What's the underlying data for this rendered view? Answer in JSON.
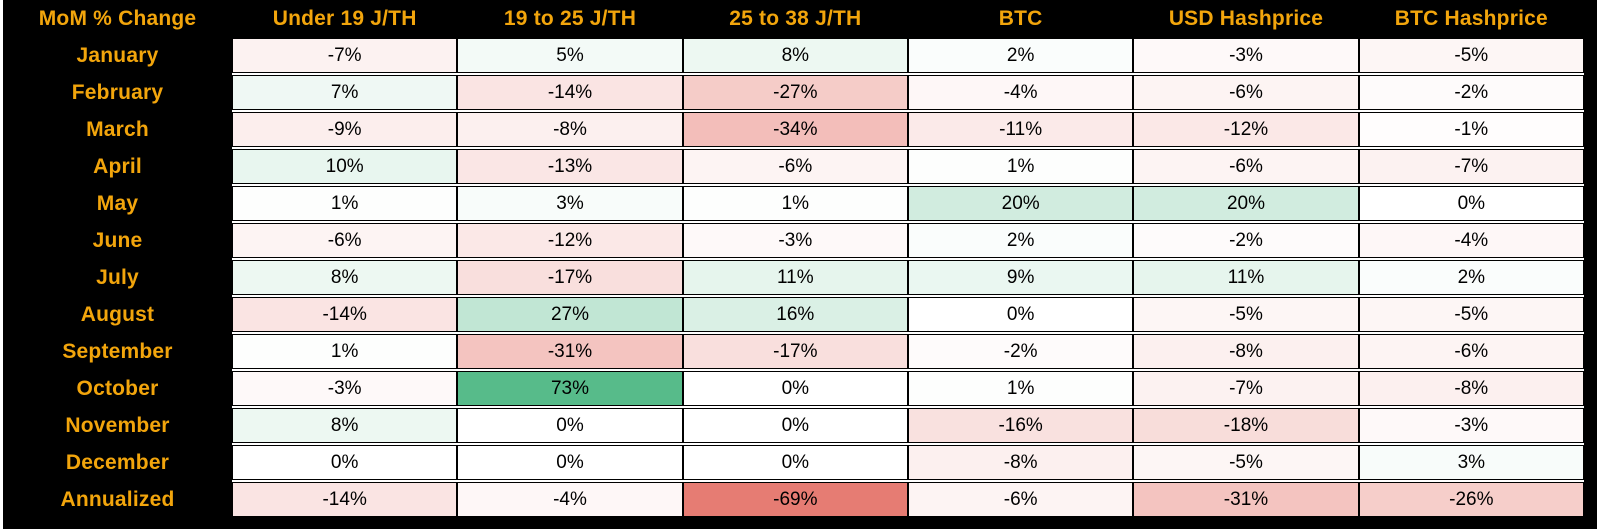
{
  "styles": {
    "page_bg": "#ffffff",
    "table_bg": "#000000",
    "header_text_color": "#F2A50C",
    "cell_text_color": "#000000",
    "cell_border_color": "#000000",
    "row_gap_color": "#ffffff"
  },
  "chart_data": {
    "type": "heatmap",
    "title": "MoM % Change",
    "corner_header": "MoM % Change",
    "unit": "%",
    "legend_position": "none",
    "grid": true,
    "columns": [
      "Under 19 J/TH",
      "19 to 25 J/TH",
      "25 to 38 J/TH",
      "BTC",
      "USD Hashprice",
      "BTC Hashprice"
    ],
    "rows": [
      "January",
      "February",
      "March",
      "April",
      "May",
      "June",
      "July",
      "August",
      "September",
      "October",
      "November",
      "December",
      "Annualized"
    ],
    "values_pct": [
      [
        -7,
        5,
        8,
        2,
        -3,
        -5
      ],
      [
        7,
        -14,
        -27,
        -4,
        -6,
        -2
      ],
      [
        -9,
        -8,
        -34,
        -11,
        -12,
        -1
      ],
      [
        10,
        -13,
        -6,
        1,
        -6,
        -7
      ],
      [
        1,
        3,
        1,
        20,
        20,
        0
      ],
      [
        -6,
        -12,
        -3,
        2,
        -2,
        -4
      ],
      [
        8,
        -17,
        11,
        9,
        11,
        2
      ],
      [
        -14,
        27,
        16,
        0,
        -5,
        -5
      ],
      [
        1,
        -31,
        -17,
        -2,
        -8,
        -6
      ],
      [
        -3,
        73,
        0,
        1,
        -7,
        -8
      ],
      [
        8,
        0,
        0,
        -16,
        -18,
        -3
      ],
      [
        0,
        0,
        0,
        -8,
        -5,
        3
      ],
      [
        -14,
        -4,
        -69,
        -6,
        -31,
        -26
      ]
    ],
    "color_scale": {
      "min_color": "#e67c73",
      "mid_color": "#ffffff",
      "max_color": "#57bb8a",
      "min_value": -69,
      "mid_value": 0,
      "max_value": 73
    }
  }
}
